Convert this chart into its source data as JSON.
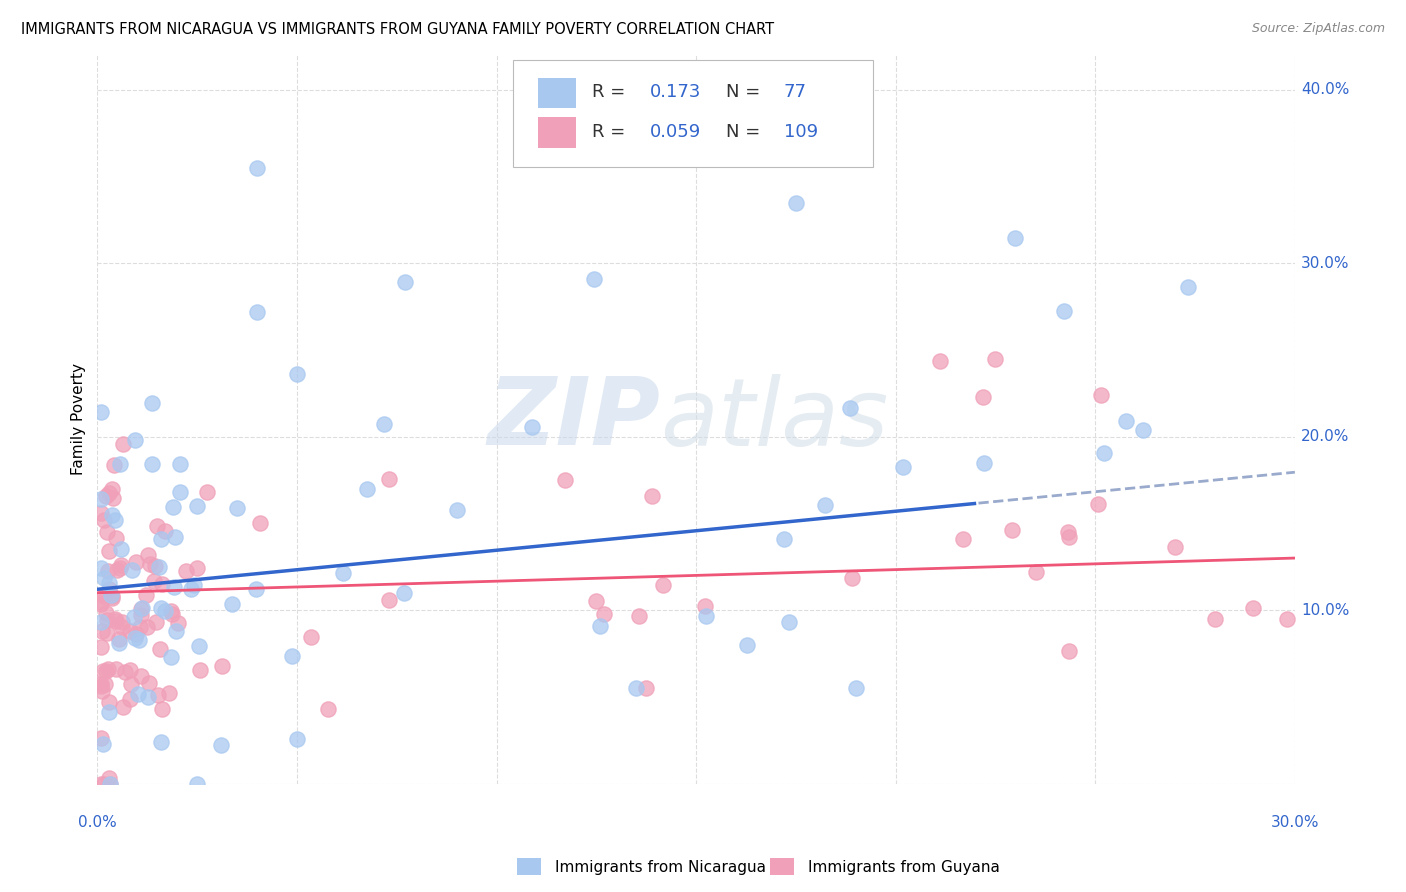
{
  "title": "IMMIGRANTS FROM NICARAGUA VS IMMIGRANTS FROM GUYANA FAMILY POVERTY CORRELATION CHART",
  "source": "Source: ZipAtlas.com",
  "ylabel": "Family Poverty",
  "xlim": [
    0.0,
    0.3
  ],
  "ylim": [
    0.0,
    0.42
  ],
  "blue_color": "#A8C8F0",
  "pink_color": "#F0A0B8",
  "blue_line_color": "#3366CC",
  "pink_line_color": "#EE5577",
  "dashed_line_color": "#99AACC",
  "R_nicaragua": 0.173,
  "N_nicaragua": 77,
  "R_guyana": 0.059,
  "N_guyana": 109,
  "watermark_zip": "ZIP",
  "watermark_atlas": "atlas",
  "legend_label_nicaragua": "Immigrants from Nicaragua",
  "legend_label_guyana": "Immigrants from Guyana"
}
